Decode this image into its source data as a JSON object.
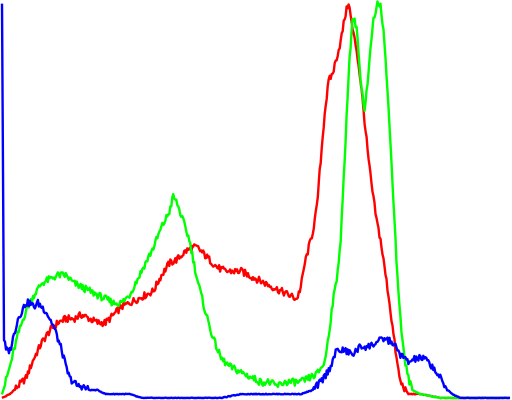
{
  "chart_data": {
    "type": "line",
    "xlim": [
      0,
      255
    ],
    "ylim": [
      0,
      1
    ],
    "grid": false,
    "legend": "none",
    "series": [
      {
        "color": "#ff0000",
        "points": [
          [
            0,
            0.0
          ],
          [
            4,
            0.01
          ],
          [
            8,
            0.03
          ],
          [
            12,
            0.05
          ],
          [
            16,
            0.1
          ],
          [
            20,
            0.14
          ],
          [
            24,
            0.17
          ],
          [
            28,
            0.19
          ],
          [
            32,
            0.2
          ],
          [
            36,
            0.2
          ],
          [
            40,
            0.21
          ],
          [
            44,
            0.2
          ],
          [
            48,
            0.19
          ],
          [
            52,
            0.19
          ],
          [
            56,
            0.21
          ],
          [
            60,
            0.23
          ],
          [
            64,
            0.24
          ],
          [
            68,
            0.25
          ],
          [
            72,
            0.26
          ],
          [
            76,
            0.27
          ],
          [
            80,
            0.31
          ],
          [
            84,
            0.34
          ],
          [
            88,
            0.35
          ],
          [
            92,
            0.37
          ],
          [
            96,
            0.38
          ],
          [
            98,
            0.38
          ],
          [
            100,
            0.37
          ],
          [
            104,
            0.35
          ],
          [
            108,
            0.33
          ],
          [
            112,
            0.32
          ],
          [
            116,
            0.32
          ],
          [
            120,
            0.32
          ],
          [
            124,
            0.31
          ],
          [
            128,
            0.3
          ],
          [
            132,
            0.29
          ],
          [
            136,
            0.28
          ],
          [
            140,
            0.27
          ],
          [
            144,
            0.26
          ],
          [
            148,
            0.25
          ],
          [
            150,
            0.28
          ],
          [
            152,
            0.34
          ],
          [
            156,
            0.42
          ],
          [
            158,
            0.48
          ],
          [
            160,
            0.6
          ],
          [
            162,
            0.72
          ],
          [
            164,
            0.8
          ],
          [
            166,
            0.82
          ],
          [
            168,
            0.86
          ],
          [
            170,
            0.9
          ],
          [
            172,
            0.96
          ],
          [
            174,
            1.0
          ],
          [
            176,
            0.93
          ],
          [
            178,
            0.88
          ],
          [
            180,
            0.8
          ],
          [
            182,
            0.7
          ],
          [
            184,
            0.6
          ],
          [
            186,
            0.52
          ],
          [
            188,
            0.45
          ],
          [
            190,
            0.4
          ],
          [
            192,
            0.33
          ],
          [
            194,
            0.26
          ],
          [
            196,
            0.18
          ],
          [
            198,
            0.1
          ],
          [
            200,
            0.04
          ],
          [
            204,
            0.01
          ],
          [
            210,
            0.01
          ],
          [
            220,
            0.0
          ],
          [
            230,
            0.0
          ],
          [
            255,
            0.0
          ]
        ]
      },
      {
        "color": "#00ff00",
        "points": [
          [
            0,
            0.01
          ],
          [
            4,
            0.08
          ],
          [
            8,
            0.16
          ],
          [
            12,
            0.22
          ],
          [
            16,
            0.26
          ],
          [
            20,
            0.29
          ],
          [
            24,
            0.3
          ],
          [
            28,
            0.31
          ],
          [
            32,
            0.31
          ],
          [
            36,
            0.29
          ],
          [
            40,
            0.28
          ],
          [
            44,
            0.27
          ],
          [
            48,
            0.26
          ],
          [
            52,
            0.25
          ],
          [
            56,
            0.24
          ],
          [
            60,
            0.24
          ],
          [
            64,
            0.26
          ],
          [
            68,
            0.3
          ],
          [
            72,
            0.34
          ],
          [
            76,
            0.38
          ],
          [
            80,
            0.43
          ],
          [
            84,
            0.47
          ],
          [
            86,
            0.51
          ],
          [
            88,
            0.49
          ],
          [
            90,
            0.46
          ],
          [
            94,
            0.4
          ],
          [
            98,
            0.3
          ],
          [
            102,
            0.22
          ],
          [
            106,
            0.15
          ],
          [
            110,
            0.1
          ],
          [
            114,
            0.08
          ],
          [
            118,
            0.07
          ],
          [
            122,
            0.06
          ],
          [
            126,
            0.05
          ],
          [
            130,
            0.04
          ],
          [
            134,
            0.04
          ],
          [
            138,
            0.03
          ],
          [
            142,
            0.04
          ],
          [
            146,
            0.04
          ],
          [
            150,
            0.04
          ],
          [
            154,
            0.05
          ],
          [
            158,
            0.06
          ],
          [
            162,
            0.09
          ],
          [
            164,
            0.16
          ],
          [
            166,
            0.24
          ],
          [
            168,
            0.3
          ],
          [
            170,
            0.4
          ],
          [
            172,
            0.6
          ],
          [
            174,
            0.82
          ],
          [
            176,
            0.96
          ],
          [
            178,
            0.94
          ],
          [
            180,
            0.8
          ],
          [
            182,
            0.72
          ],
          [
            184,
            0.82
          ],
          [
            186,
            0.94
          ],
          [
            188,
            0.99
          ],
          [
            190,
            1.0
          ],
          [
            192,
            0.9
          ],
          [
            194,
            0.73
          ],
          [
            196,
            0.55
          ],
          [
            198,
            0.35
          ],
          [
            200,
            0.2
          ],
          [
            202,
            0.1
          ],
          [
            204,
            0.05
          ],
          [
            206,
            0.02
          ],
          [
            210,
            0.01
          ],
          [
            220,
            0.0
          ],
          [
            230,
            0.0
          ],
          [
            255,
            0.0
          ]
        ]
      },
      {
        "color": "#0000ff",
        "points": [
          [
            0,
            1.0
          ],
          [
            1,
            0.15
          ],
          [
            2,
            0.12
          ],
          [
            4,
            0.12
          ],
          [
            6,
            0.16
          ],
          [
            8,
            0.2
          ],
          [
            10,
            0.22
          ],
          [
            12,
            0.24
          ],
          [
            14,
            0.24
          ],
          [
            16,
            0.23
          ],
          [
            18,
            0.24
          ],
          [
            20,
            0.23
          ],
          [
            22,
            0.22
          ],
          [
            24,
            0.2
          ],
          [
            26,
            0.18
          ],
          [
            28,
            0.15
          ],
          [
            30,
            0.12
          ],
          [
            32,
            0.08
          ],
          [
            34,
            0.05
          ],
          [
            36,
            0.04
          ],
          [
            38,
            0.03
          ],
          [
            40,
            0.03
          ],
          [
            44,
            0.02
          ],
          [
            48,
            0.02
          ],
          [
            52,
            0.01
          ],
          [
            56,
            0.01
          ],
          [
            60,
            0.01
          ],
          [
            64,
            0.01
          ],
          [
            70,
            0.0
          ],
          [
            80,
            0.0
          ],
          [
            90,
            0.0
          ],
          [
            100,
            0.0
          ],
          [
            110,
            0.0
          ],
          [
            120,
            0.01
          ],
          [
            130,
            0.01
          ],
          [
            140,
            0.01
          ],
          [
            150,
            0.01
          ],
          [
            156,
            0.02
          ],
          [
            160,
            0.04
          ],
          [
            164,
            0.07
          ],
          [
            168,
            0.12
          ],
          [
            172,
            0.12
          ],
          [
            176,
            0.11
          ],
          [
            180,
            0.13
          ],
          [
            184,
            0.13
          ],
          [
            188,
            0.14
          ],
          [
            192,
            0.15
          ],
          [
            196,
            0.14
          ],
          [
            200,
            0.11
          ],
          [
            204,
            0.09
          ],
          [
            208,
            0.1
          ],
          [
            212,
            0.1
          ],
          [
            216,
            0.08
          ],
          [
            220,
            0.05
          ],
          [
            222,
            0.03
          ],
          [
            226,
            0.01
          ],
          [
            230,
            0.0
          ],
          [
            240,
            0.0
          ],
          [
            255,
            0.0
          ]
        ]
      }
    ]
  }
}
